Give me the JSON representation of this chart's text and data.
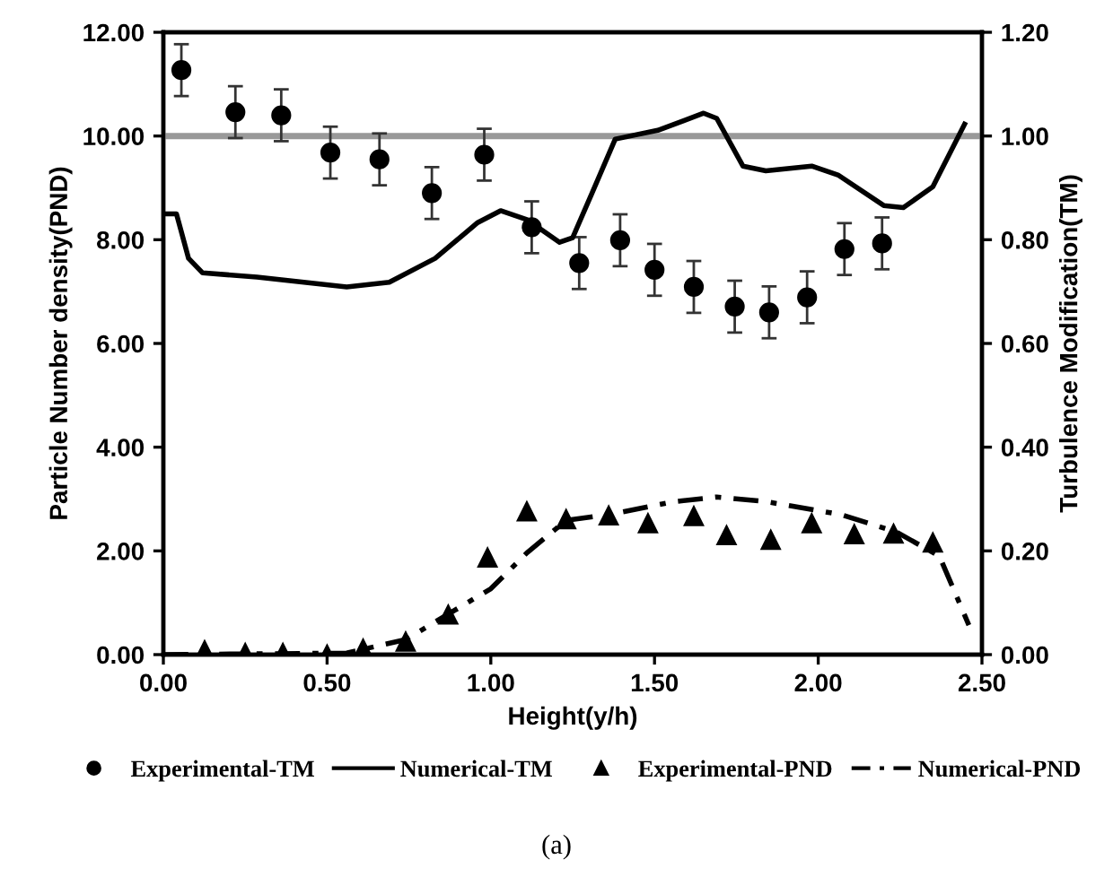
{
  "chart_data": {
    "type": "line",
    "xlabel": "Height(y/h)",
    "ylabel": "Particle Number density(PND)",
    "y2label": "Turbulence Modification(TM)",
    "xlim": [
      0,
      2.5
    ],
    "xticks": [
      {
        "value": 0,
        "label": "0.00"
      },
      {
        "value": 0.5,
        "label": "0.50"
      },
      {
        "value": 1,
        "label": "1.00"
      },
      {
        "value": 1.5,
        "label": "1.50"
      },
      {
        "value": 2,
        "label": "2.00"
      },
      {
        "value": 2.5,
        "label": "2.50"
      }
    ],
    "ylim": [
      0,
      12
    ],
    "yticks": [
      {
        "value": 0,
        "label": "0.00"
      },
      {
        "value": 2,
        "label": "2.00"
      },
      {
        "value": 4,
        "label": "4.00"
      },
      {
        "value": 6,
        "label": "6.00"
      },
      {
        "value": 8,
        "label": "8.00"
      },
      {
        "value": 10,
        "label": "10.00"
      },
      {
        "value": 12,
        "label": "12.00"
      }
    ],
    "y2lim": [
      0,
      1.2
    ],
    "y2ticks": [
      {
        "value": 0,
        "label": "0.00"
      },
      {
        "value": 0.2,
        "label": "0.20"
      },
      {
        "value": 0.4,
        "label": "0.40"
      },
      {
        "value": 0.6,
        "label": "0.60"
      },
      {
        "value": 0.8,
        "label": "0.80"
      },
      {
        "value": 1,
        "label": "1.00"
      },
      {
        "value": 1.2,
        "label": "1.20"
      }
    ],
    "grid": false,
    "legend": "bottom",
    "ref_lines": [
      {
        "axis": "y2",
        "value": 1.0,
        "color": "#999999"
      }
    ],
    "annotations": [
      "(a)"
    ],
    "series": [
      {
        "name": "Experimental-TM",
        "type": "scatter",
        "axis": "y2",
        "marker": "circle",
        "color": "#000000",
        "x": [
          0.055,
          0.22,
          0.36,
          0.51,
          0.66,
          0.82,
          0.98,
          1.125,
          1.27,
          1.395,
          1.5,
          1.62,
          1.745,
          1.85,
          1.966,
          2.08,
          2.195
        ],
        "values": [
          1.127,
          1.046,
          1.04,
          0.968,
          0.955,
          0.89,
          0.964,
          0.824,
          0.755,
          0.799,
          0.742,
          0.709,
          0.671,
          0.66,
          0.689,
          0.782,
          0.793
        ],
        "errors": [
          0.05,
          0.05,
          0.05,
          0.05,
          0.05,
          0.05,
          0.05,
          0.05,
          0.05,
          0.05,
          0.05,
          0.05,
          0.05,
          0.05,
          0.05,
          0.05,
          0.05
        ]
      },
      {
        "name": "Numerical-TM",
        "axis": "y2",
        "line_style": "solid",
        "color": "#000000",
        "x": [
          0.0,
          0.04,
          0.077,
          0.12,
          0.286,
          0.56,
          0.69,
          0.83,
          0.96,
          1.03,
          1.11,
          1.21,
          1.25,
          1.31,
          1.38,
          1.51,
          1.65,
          1.69,
          1.77,
          1.84,
          1.98,
          2.06,
          2.2,
          2.26,
          2.35,
          2.447
        ],
        "values": [
          0.85,
          0.85,
          0.764,
          0.736,
          0.728,
          0.709,
          0.718,
          0.764,
          0.833,
          0.856,
          0.839,
          0.795,
          0.804,
          0.891,
          0.994,
          1.011,
          1.044,
          1.034,
          0.942,
          0.933,
          0.942,
          0.925,
          0.866,
          0.862,
          0.902,
          1.023
        ]
      },
      {
        "name": "Experimental-PND",
        "type": "scatter",
        "marker": "triangle",
        "color": "#000000",
        "x": [
          0.126,
          0.25,
          0.365,
          0.5,
          0.61,
          0.74,
          0.87,
          0.99,
          1.11,
          1.23,
          1.36,
          1.48,
          1.62,
          1.72,
          1.855,
          1.98,
          2.11,
          2.23,
          2.35
        ],
        "values": [
          0.08,
          0.03,
          0.03,
          0.0,
          0.11,
          0.25,
          0.77,
          1.87,
          2.76,
          2.61,
          2.68,
          2.53,
          2.67,
          2.3,
          2.21,
          2.53,
          2.32,
          2.33,
          2.16
        ]
      },
      {
        "name": "Numerical-PND",
        "line_style": "dashdot",
        "color": "#000000",
        "x": [
          0.0,
          0.56,
          0.74,
          1.0,
          1.11,
          1.23,
          1.36,
          1.56,
          1.69,
          1.84,
          2.07,
          2.24,
          2.37,
          2.46
        ],
        "values": [
          0.0,
          0.03,
          0.29,
          1.27,
          1.96,
          2.59,
          2.7,
          2.95,
          3.04,
          2.95,
          2.7,
          2.36,
          1.9,
          0.57
        ]
      }
    ]
  }
}
